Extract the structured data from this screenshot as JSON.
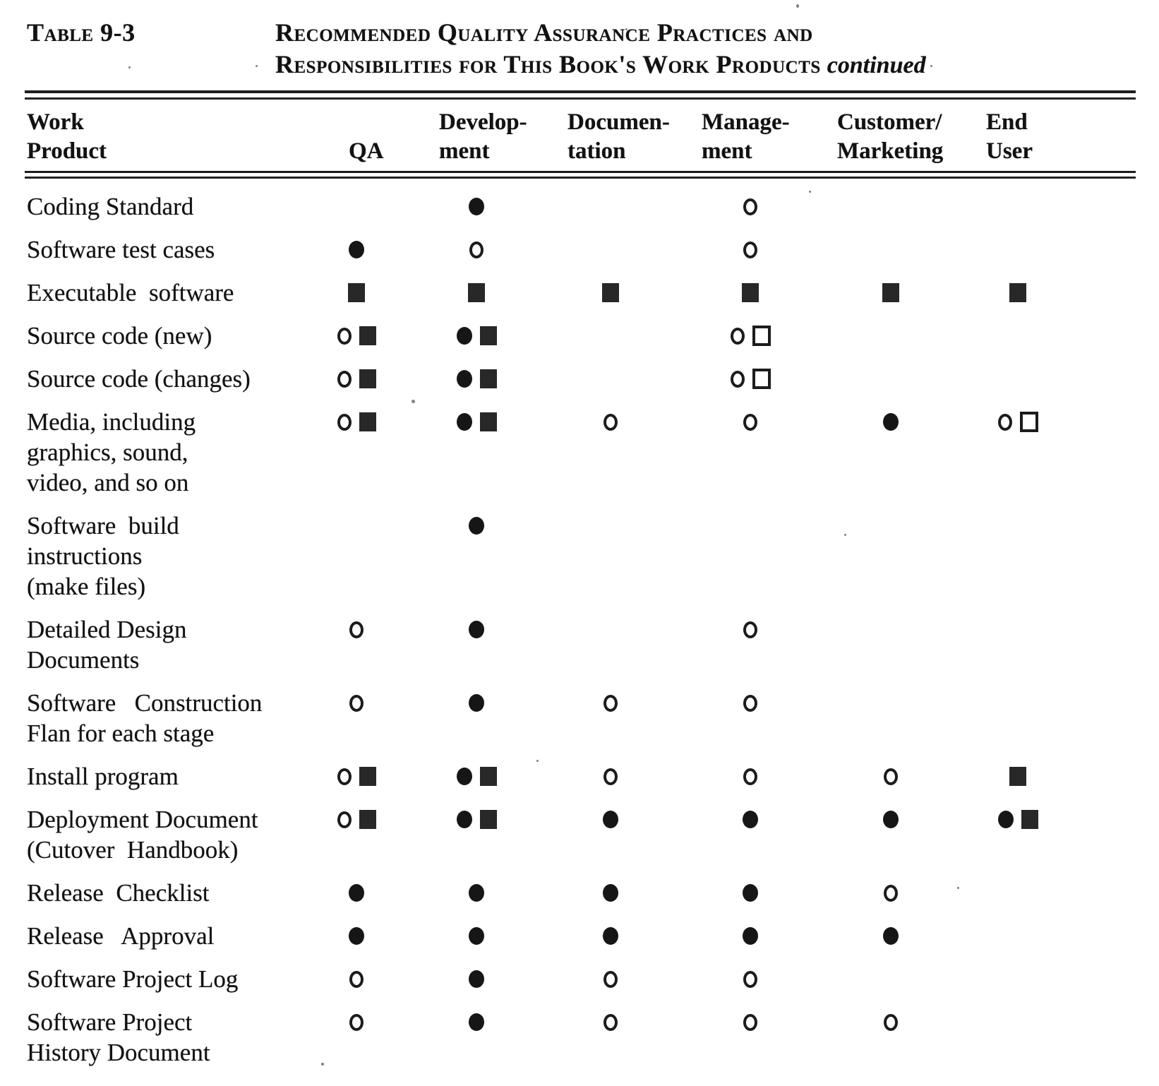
{
  "caption": {
    "label": "Table 9-3",
    "title_line1": "Recommended Quality Assurance Practices and",
    "title_line2": "Responsibilities for This Book's Work Products",
    "continued": "continued"
  },
  "columns": [
    {
      "id": "product",
      "label": "Work\nProduct"
    },
    {
      "id": "qa",
      "label": "QA"
    },
    {
      "id": "development",
      "label": "Develop-\nment"
    },
    {
      "id": "documentation",
      "label": "Documen-\ntation"
    },
    {
      "id": "management",
      "label": "Manage-\nment"
    },
    {
      "id": "customer_marketing",
      "label": "Customer/\nMarketing"
    },
    {
      "id": "end_user",
      "label": "End\nUser"
    }
  ],
  "symbol_types": [
    "open-circle",
    "filled-circle",
    "filled-square",
    "open-square"
  ],
  "rows": [
    {
      "product": "Coding Standard",
      "cells": {
        "development": [
          "filled-circle"
        ],
        "management": [
          "open-circle"
        ]
      }
    },
    {
      "product": "Software test cases",
      "cells": {
        "qa": [
          "filled-circle"
        ],
        "development": [
          "open-circle"
        ],
        "management": [
          "open-circle"
        ]
      }
    },
    {
      "product": "Executable  software",
      "cells": {
        "qa": [
          "filled-square"
        ],
        "development": [
          "filled-square"
        ],
        "documentation": [
          "filled-square"
        ],
        "management": [
          "filled-square"
        ],
        "customer_marketing": [
          "filled-square"
        ],
        "end_user": [
          "filled-square"
        ]
      }
    },
    {
      "product": "Source code (new)",
      "cells": {
        "qa": [
          "open-circle",
          "filled-square"
        ],
        "development": [
          "filled-circle",
          "filled-square"
        ],
        "management": [
          "open-circle",
          "open-square"
        ]
      }
    },
    {
      "product": "Source code (changes)",
      "cells": {
        "qa": [
          "open-circle",
          "filled-square"
        ],
        "development": [
          "filled-circle",
          "filled-square"
        ],
        "management": [
          "open-circle",
          "open-square"
        ]
      }
    },
    {
      "product": "Media, including\ngraphics, sound,\nvideo, and so on",
      "cells": {
        "qa": [
          "open-circle",
          "filled-square"
        ],
        "development": [
          "filled-circle",
          "filled-square"
        ],
        "documentation": [
          "open-circle"
        ],
        "management": [
          "open-circle"
        ],
        "customer_marketing": [
          "filled-circle"
        ],
        "end_user": [
          "open-circle",
          "open-square"
        ]
      }
    },
    {
      "product": "Software  build\ninstructions\n(make files)",
      "cells": {
        "development": [
          "filled-circle"
        ]
      }
    },
    {
      "product": "Detailed Design\nDocuments",
      "cells": {
        "qa": [
          "open-circle"
        ],
        "development": [
          "filled-circle"
        ],
        "management": [
          "open-circle"
        ]
      }
    },
    {
      "product": "Software   Construction\nFlan for each stage",
      "cells": {
        "qa": [
          "open-circle"
        ],
        "development": [
          "filled-circle"
        ],
        "documentation": [
          "open-circle"
        ],
        "management": [
          "open-circle"
        ]
      }
    },
    {
      "product": "Install program",
      "cells": {
        "qa": [
          "open-circle",
          "filled-square"
        ],
        "development": [
          "filled-circle",
          "filled-square"
        ],
        "documentation": [
          "open-circle"
        ],
        "management": [
          "open-circle"
        ],
        "customer_marketing": [
          "open-circle"
        ],
        "end_user": [
          "filled-square"
        ]
      }
    },
    {
      "product": "Deployment Document\n(Cutover  Handbook)",
      "cells": {
        "qa": [
          "open-circle",
          "filled-square"
        ],
        "development": [
          "filled-circle",
          "filled-square"
        ],
        "documentation": [
          "filled-circle"
        ],
        "management": [
          "filled-circle"
        ],
        "customer_marketing": [
          "filled-circle"
        ],
        "end_user": [
          "filled-circle",
          "filled-square"
        ]
      }
    },
    {
      "product": "Release  Checklist",
      "cells": {
        "qa": [
          "filled-circle"
        ],
        "development": [
          "filled-circle"
        ],
        "documentation": [
          "filled-circle"
        ],
        "management": [
          "filled-circle"
        ],
        "customer_marketing": [
          "open-circle"
        ]
      }
    },
    {
      "product": "Release   Approval",
      "cells": {
        "qa": [
          "filled-circle"
        ],
        "development": [
          "filled-circle"
        ],
        "documentation": [
          "filled-circle"
        ],
        "management": [
          "filled-circle"
        ],
        "customer_marketing": [
          "filled-circle"
        ]
      }
    },
    {
      "product": "Software Project Log",
      "cells": {
        "qa": [
          "open-circle"
        ],
        "development": [
          "filled-circle"
        ],
        "documentation": [
          "open-circle"
        ],
        "management": [
          "open-circle"
        ]
      }
    },
    {
      "product": "Software Project\nHistory Document",
      "cells": {
        "qa": [
          "open-circle"
        ],
        "development": [
          "filled-circle"
        ],
        "documentation": [
          "open-circle"
        ],
        "management": [
          "open-circle"
        ],
        "customer_marketing": [
          "open-circle"
        ]
      }
    }
  ]
}
